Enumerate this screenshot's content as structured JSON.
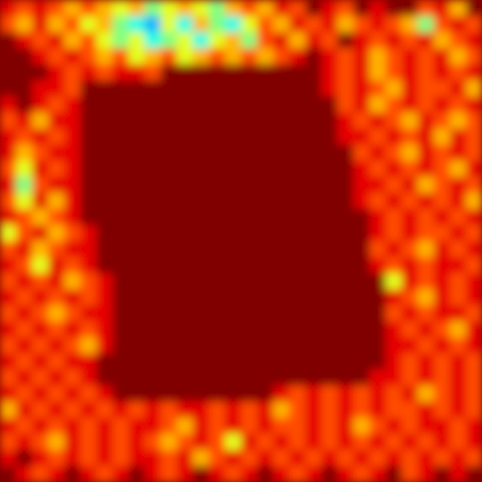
{
  "chart_data": {
    "type": "heatmap",
    "tick_labels": false,
    "color_range": [
      0,
      10
    ],
    "cells": [
      [
        9,
        8,
        9,
        8,
        7,
        8,
        7,
        6,
        7,
        5,
        6,
        7,
        6,
        5,
        7,
        8,
        7,
        9,
        8,
        10,
        9,
        8,
        10,
        9,
        10,
        10,
        8,
        9,
        7,
        10
      ],
      [
        8,
        7,
        9,
        7,
        8,
        6,
        7,
        5,
        4,
        3,
        6,
        4,
        7,
        5,
        4,
        6,
        8,
        7,
        9,
        8,
        9,
        7,
        8,
        9,
        8,
        7,
        5,
        8,
        9,
        8
      ],
      [
        10,
        9,
        8,
        9,
        7,
        8,
        6,
        5,
        6,
        4,
        5,
        6,
        4,
        6,
        7,
        5,
        8,
        9,
        7,
        9,
        8,
        10,
        9,
        8,
        9,
        8,
        9,
        7,
        8,
        9
      ],
      [
        10,
        10,
        9,
        8,
        9,
        8,
        7,
        8,
        6,
        7,
        8,
        6,
        7,
        8,
        7,
        8,
        7,
        8,
        9,
        10,
        9,
        8,
        9,
        7,
        8,
        9,
        8,
        9,
        7,
        8
      ],
      [
        10,
        10,
        10,
        9,
        8,
        9,
        8,
        9,
        9,
        8,
        10,
        10,
        10,
        10,
        10,
        10,
        10,
        10,
        10,
        10,
        9,
        8,
        9,
        7,
        8,
        9,
        8,
        9,
        8,
        9
      ],
      [
        10,
        10,
        9,
        9,
        8,
        10,
        10,
        10,
        10,
        10,
        10,
        10,
        10,
        10,
        10,
        10,
        10,
        10,
        10,
        10,
        9,
        8,
        9,
        8,
        7,
        9,
        8,
        8,
        9,
        7
      ],
      [
        9,
        10,
        9,
        8,
        9,
        10,
        10,
        10,
        10,
        10,
        10,
        10,
        10,
        10,
        10,
        10,
        10,
        10,
        10,
        10,
        10,
        8,
        9,
        7,
        8,
        9,
        8,
        9,
        8,
        9
      ],
      [
        8,
        9,
        7,
        9,
        9,
        10,
        10,
        10,
        10,
        10,
        10,
        10,
        10,
        10,
        10,
        10,
        10,
        10,
        10,
        10,
        10,
        9,
        8,
        9,
        8,
        7,
        9,
        8,
        7,
        8
      ],
      [
        9,
        8,
        9,
        8,
        9,
        10,
        10,
        10,
        10,
        10,
        10,
        10,
        10,
        10,
        10,
        10,
        10,
        10,
        10,
        10,
        10,
        9,
        9,
        8,
        9,
        8,
        9,
        7,
        9,
        8
      ],
      [
        9,
        7,
        8,
        9,
        9,
        10,
        10,
        10,
        10,
        10,
        10,
        10,
        10,
        10,
        10,
        10,
        10,
        10,
        10,
        10,
        10,
        10,
        8,
        9,
        8,
        7,
        9,
        8,
        9,
        8
      ],
      [
        8,
        6,
        9,
        8,
        9,
        10,
        10,
        10,
        10,
        10,
        10,
        10,
        10,
        10,
        10,
        10,
        10,
        10,
        10,
        10,
        10,
        10,
        9,
        8,
        9,
        8,
        9,
        8,
        7,
        9
      ],
      [
        9,
        5,
        8,
        9,
        9,
        10,
        10,
        10,
        10,
        10,
        10,
        10,
        10,
        10,
        10,
        10,
        10,
        10,
        10,
        10,
        10,
        10,
        9,
        9,
        8,
        9,
        7,
        8,
        9,
        8
      ],
      [
        8,
        6,
        9,
        7,
        9,
        10,
        10,
        10,
        10,
        10,
        10,
        10,
        10,
        10,
        10,
        10,
        10,
        10,
        10,
        10,
        10,
        10,
        9,
        8,
        9,
        8,
        9,
        8,
        9,
        7
      ],
      [
        9,
        8,
        7,
        8,
        9,
        10,
        10,
        10,
        10,
        10,
        10,
        10,
        10,
        10,
        10,
        10,
        10,
        10,
        10,
        10,
        10,
        10,
        10,
        9,
        8,
        9,
        8,
        9,
        8,
        9
      ],
      [
        6,
        8,
        9,
        7,
        8,
        9,
        10,
        10,
        10,
        10,
        10,
        10,
        10,
        10,
        10,
        10,
        10,
        10,
        10,
        10,
        10,
        10,
        10,
        9,
        8,
        9,
        8,
        8,
        9,
        8
      ],
      [
        8,
        9,
        7,
        8,
        9,
        9,
        10,
        10,
        10,
        10,
        10,
        10,
        10,
        10,
        10,
        10,
        10,
        10,
        10,
        10,
        10,
        10,
        10,
        8,
        9,
        8,
        7,
        9,
        8,
        9
      ],
      [
        9,
        8,
        6,
        9,
        8,
        9,
        10,
        10,
        10,
        10,
        10,
        10,
        10,
        10,
        10,
        10,
        10,
        10,
        10,
        10,
        10,
        10,
        10,
        9,
        8,
        9,
        8,
        9,
        9,
        8
      ],
      [
        8,
        9,
        8,
        9,
        7,
        8,
        9,
        10,
        10,
        10,
        10,
        10,
        10,
        10,
        10,
        10,
        10,
        10,
        10,
        10,
        10,
        10,
        10,
        10,
        6,
        9,
        8,
        9,
        8,
        9
      ],
      [
        9,
        8,
        9,
        8,
        9,
        8,
        9,
        10,
        10,
        10,
        10,
        10,
        10,
        10,
        10,
        10,
        10,
        10,
        10,
        10,
        10,
        10,
        10,
        10,
        9,
        8,
        7,
        9,
        8,
        9
      ],
      [
        8,
        9,
        8,
        7,
        8,
        9,
        9,
        10,
        10,
        10,
        10,
        10,
        10,
        10,
        10,
        10,
        10,
        10,
        10,
        10,
        10,
        10,
        10,
        10,
        8,
        9,
        8,
        9,
        9,
        8
      ],
      [
        9,
        8,
        9,
        8,
        9,
        8,
        9,
        10,
        10,
        10,
        10,
        10,
        10,
        10,
        10,
        10,
        10,
        10,
        10,
        10,
        10,
        10,
        10,
        10,
        9,
        8,
        9,
        8,
        7,
        9
      ],
      [
        8,
        9,
        8,
        9,
        8,
        7,
        9,
        10,
        10,
        10,
        10,
        10,
        10,
        10,
        10,
        10,
        10,
        10,
        10,
        10,
        10,
        10,
        10,
        10,
        9,
        9,
        8,
        9,
        8,
        9
      ],
      [
        9,
        8,
        9,
        8,
        9,
        9,
        10,
        10,
        10,
        10,
        10,
        10,
        10,
        10,
        10,
        10,
        10,
        10,
        10,
        10,
        10,
        10,
        10,
        10,
        9,
        8,
        9,
        8,
        9,
        8
      ],
      [
        8,
        9,
        8,
        9,
        8,
        9,
        10,
        10,
        10,
        10,
        10,
        10,
        10,
        10,
        10,
        10,
        10,
        10,
        10,
        10,
        10,
        10,
        10,
        9,
        9,
        8,
        9,
        8,
        9,
        8
      ],
      [
        9,
        8,
        9,
        8,
        9,
        8,
        9,
        10,
        10,
        10,
        10,
        10,
        10,
        10,
        10,
        10,
        10,
        9,
        8,
        9,
        8,
        9,
        8,
        9,
        8,
        9,
        7,
        8,
        9,
        8
      ],
      [
        7,
        9,
        8,
        9,
        8,
        9,
        8,
        9,
        8,
        9,
        8,
        9,
        9,
        8,
        9,
        8,
        9,
        7,
        8,
        9,
        8,
        9,
        8,
        9,
        8,
        8,
        9,
        8,
        9,
        8
      ],
      [
        9,
        8,
        9,
        8,
        9,
        8,
        9,
        8,
        9,
        9,
        8,
        7,
        9,
        8,
        9,
        8,
        9,
        8,
        8,
        9,
        8,
        9,
        7,
        8,
        9,
        8,
        9,
        9,
        8,
        9
      ],
      [
        8,
        9,
        8,
        7,
        9,
        8,
        9,
        8,
        9,
        8,
        7,
        8,
        9,
        8,
        6,
        9,
        8,
        9,
        8,
        9,
        8,
        9,
        8,
        9,
        8,
        9,
        8,
        9,
        8,
        9
      ],
      [
        9,
        10,
        9,
        8,
        9,
        8,
        9,
        8,
        9,
        9,
        8,
        9,
        7,
        8,
        9,
        8,
        9,
        8,
        9,
        8,
        9,
        8,
        9,
        8,
        9,
        8,
        9,
        8,
        9,
        8
      ],
      [
        10,
        9,
        8,
        9,
        10,
        9,
        8,
        9,
        10,
        9,
        8,
        9,
        10,
        9,
        8,
        9,
        10,
        9,
        8,
        9,
        10,
        9,
        8,
        9,
        10,
        8,
        9,
        10,
        9,
        10
      ]
    ]
  }
}
